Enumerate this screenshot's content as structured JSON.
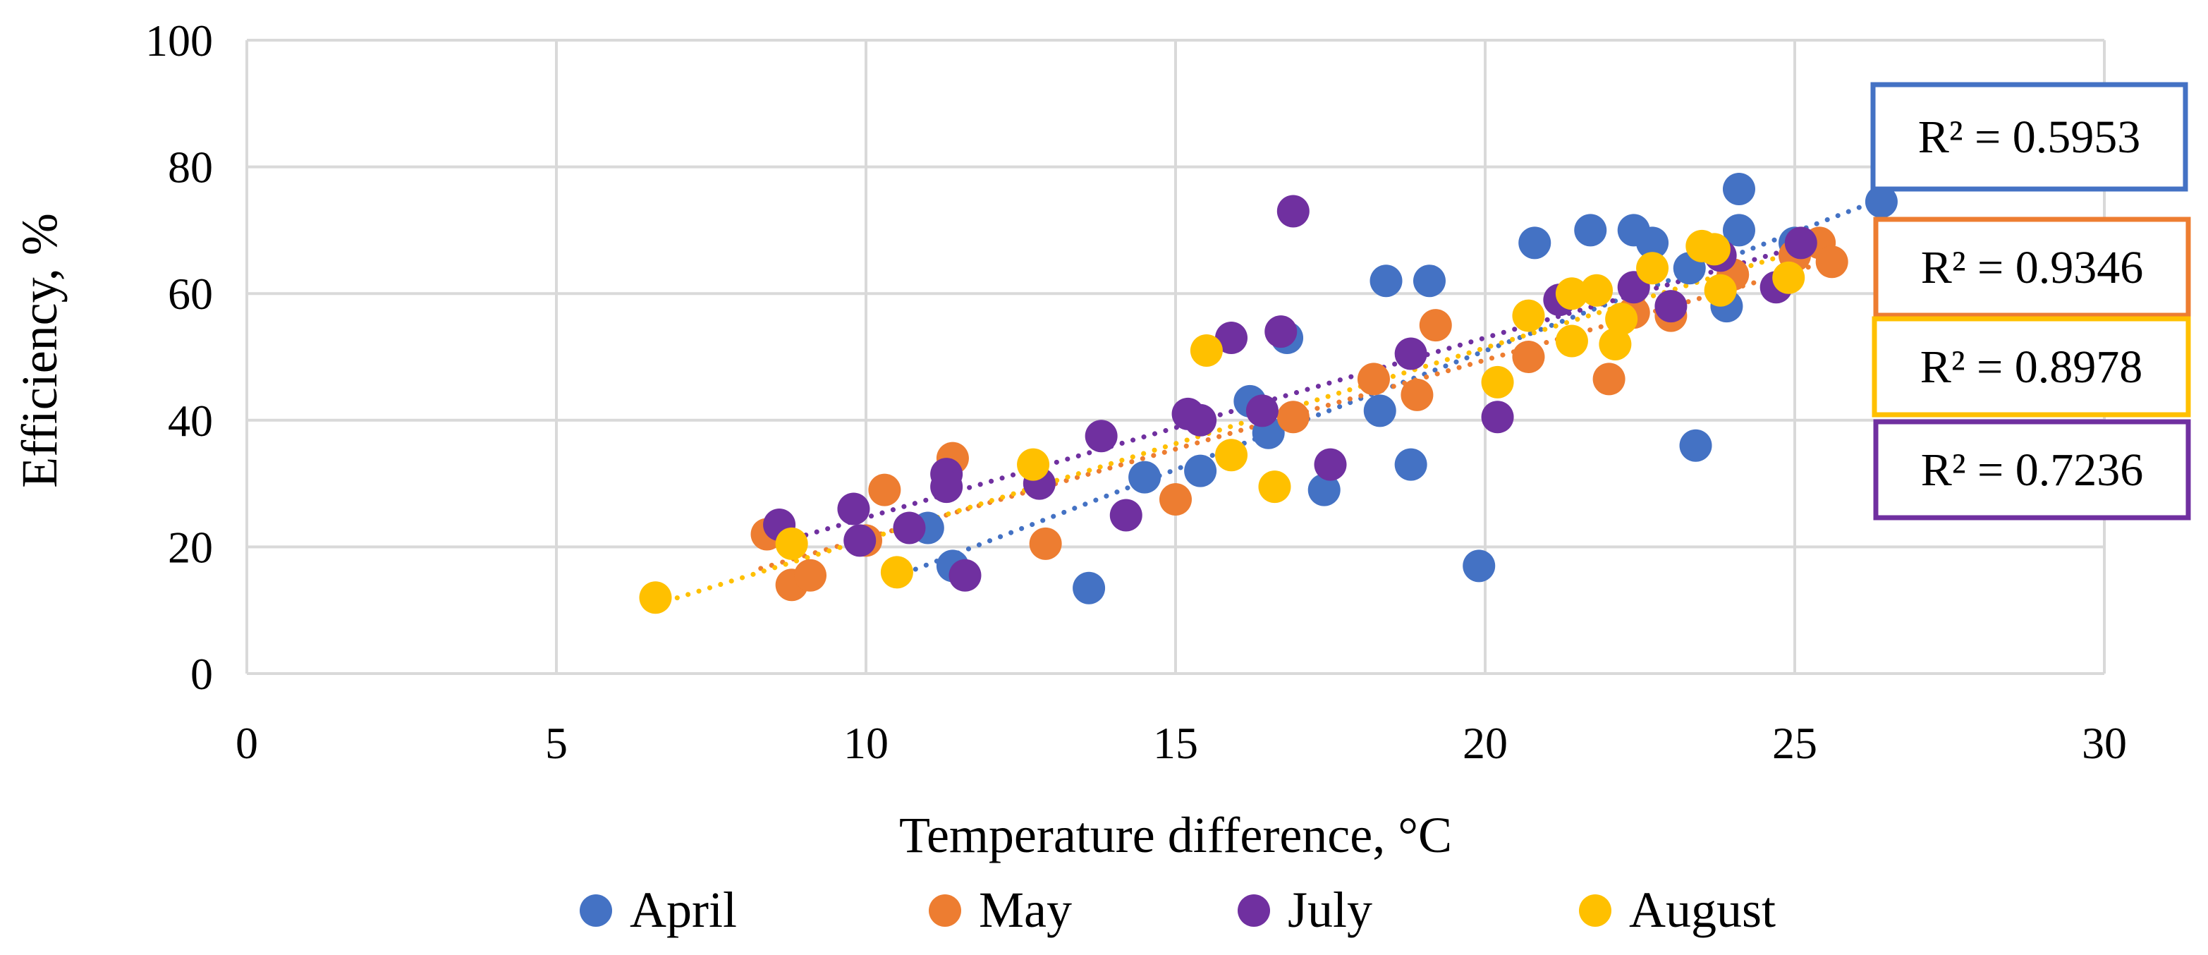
{
  "chart_data": {
    "type": "scatter",
    "title": "",
    "xlabel": "Temperature difference, °C",
    "ylabel": "Efficiency, %",
    "xlim": [
      0,
      30
    ],
    "ylim": [
      0,
      100
    ],
    "xticks": [
      0,
      5,
      10,
      15,
      20,
      25,
      30
    ],
    "yticks": [
      0,
      20,
      40,
      60,
      80,
      100
    ],
    "grid": true,
    "legend_position": "bottom",
    "series": [
      {
        "name": "April",
        "color": "#4472C4",
        "points": [
          [
            11.0,
            23
          ],
          [
            11.4,
            17
          ],
          [
            13.6,
            13.5
          ],
          [
            14.5,
            31
          ],
          [
            15.4,
            32
          ],
          [
            16.2,
            43
          ],
          [
            16.5,
            38
          ],
          [
            16.8,
            53
          ],
          [
            17.4,
            29
          ],
          [
            18.3,
            41.5
          ],
          [
            18.4,
            62
          ],
          [
            18.8,
            33
          ],
          [
            19.1,
            62
          ],
          [
            19.9,
            17
          ],
          [
            20.8,
            68
          ],
          [
            21.7,
            70
          ],
          [
            22.4,
            70
          ],
          [
            22.7,
            68
          ],
          [
            23.3,
            64
          ],
          [
            23.4,
            36
          ],
          [
            23.9,
            58
          ],
          [
            24.1,
            76.5
          ],
          [
            24.1,
            70
          ],
          [
            25.0,
            68
          ],
          [
            26.4,
            74.5
          ]
        ],
        "trendline_x": [
          10.8,
          26.4
        ],
        "r2_label": "R² = 0.5953"
      },
      {
        "name": "May",
        "color": "#ED7D31",
        "points": [
          [
            8.4,
            22
          ],
          [
            8.8,
            14
          ],
          [
            9.1,
            15.5
          ],
          [
            10.0,
            21
          ],
          [
            10.3,
            29
          ],
          [
            11.4,
            34
          ],
          [
            12.9,
            20.5
          ],
          [
            15.0,
            27.5
          ],
          [
            16.9,
            40.5
          ],
          [
            18.2,
            46.5
          ],
          [
            18.9,
            44
          ],
          [
            19.2,
            55
          ],
          [
            20.7,
            50
          ],
          [
            22.0,
            46.5
          ],
          [
            22.4,
            57
          ],
          [
            23.0,
            56.5
          ],
          [
            24.0,
            63
          ],
          [
            25.0,
            66
          ],
          [
            25.4,
            68
          ],
          [
            25.6,
            65
          ]
        ],
        "trendline_x": [
          8.3,
          25.5
        ],
        "r2_label": "R² = 0.9346"
      },
      {
        "name": "July",
        "color": "#7030A0",
        "points": [
          [
            8.6,
            23.5
          ],
          [
            9.8,
            26
          ],
          [
            9.9,
            21
          ],
          [
            10.7,
            23
          ],
          [
            11.3,
            31.5
          ],
          [
            11.3,
            29.5
          ],
          [
            11.6,
            15.5
          ],
          [
            12.8,
            30
          ],
          [
            13.8,
            37.5
          ],
          [
            14.2,
            25
          ],
          [
            15.2,
            41
          ],
          [
            15.4,
            40
          ],
          [
            15.9,
            53
          ],
          [
            16.4,
            41.5
          ],
          [
            16.7,
            54
          ],
          [
            16.9,
            73
          ],
          [
            17.5,
            33
          ],
          [
            18.8,
            50.5
          ],
          [
            20.2,
            40.5
          ],
          [
            21.2,
            59
          ],
          [
            22.4,
            61
          ],
          [
            23.0,
            58
          ],
          [
            23.8,
            66
          ],
          [
            24.7,
            61
          ],
          [
            25.1,
            68
          ]
        ],
        "trendline_x": [
          8.5,
          25.0
        ],
        "r2_label": "R² = 0.7236"
      },
      {
        "name": "August",
        "color": "#FFC000",
        "points": [
          [
            6.6,
            12
          ],
          [
            8.8,
            20.5
          ],
          [
            10.5,
            16
          ],
          [
            12.7,
            33
          ],
          [
            15.5,
            51
          ],
          [
            15.9,
            34.5
          ],
          [
            16.6,
            29.5
          ],
          [
            20.2,
            46
          ],
          [
            20.7,
            56.5
          ],
          [
            21.4,
            60
          ],
          [
            21.4,
            52.5
          ],
          [
            21.8,
            60.5
          ],
          [
            22.1,
            52
          ],
          [
            22.2,
            56
          ],
          [
            22.7,
            64
          ],
          [
            23.5,
            67.5
          ],
          [
            23.7,
            67
          ],
          [
            23.8,
            60.5
          ],
          [
            24.9,
            62.5
          ]
        ],
        "trendline_x": [
          6.6,
          24.9
        ],
        "r2_label": "R² = 0.8978"
      }
    ]
  }
}
